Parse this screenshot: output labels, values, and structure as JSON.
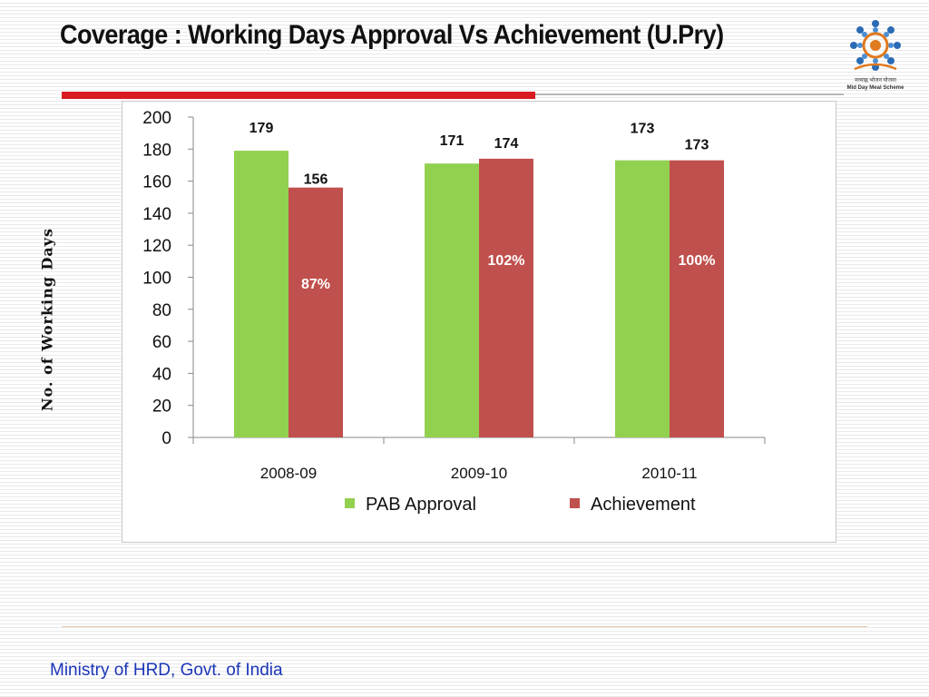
{
  "slide": {
    "title": "Coverage : Working Days Approval Vs Achievement (U.Pry)",
    "footer": "Ministry of HRD, Govt. of India",
    "logo": {
      "name": "mid-day-meal-scheme-logo",
      "caption_hindi": "मध्याह्न भोजन योजना",
      "caption_english": "Mid Day Meal Scheme"
    }
  },
  "colors": {
    "accent_red": "#d81b21",
    "series_approval": "#92d050",
    "series_achievement": "#c0504d",
    "footer_text": "#1a35b8"
  },
  "chart_data": {
    "type": "bar",
    "categories": [
      "2008-09",
      "2009-10",
      "2010-11"
    ],
    "series": [
      {
        "name": "PAB Approval",
        "values": [
          179,
          171,
          173
        ]
      },
      {
        "name": "Achievement",
        "values": [
          156,
          174,
          173
        ]
      }
    ],
    "percent_labels": [
      "87%",
      "102%",
      "100%"
    ],
    "ylabel": "No. of Working Days",
    "xlabel": "",
    "ylim": [
      0,
      200
    ],
    "yticks": [
      0,
      20,
      40,
      60,
      80,
      100,
      120,
      140,
      160,
      180,
      200
    ],
    "legend_position": "bottom",
    "grid": false
  }
}
